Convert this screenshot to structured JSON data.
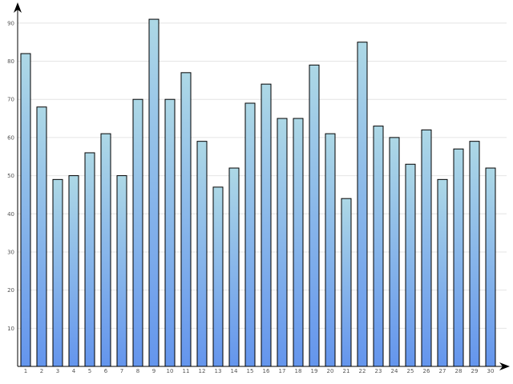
{
  "chart_data": {
    "type": "bar",
    "categories": [
      "1",
      "2",
      "3",
      "4",
      "5",
      "6",
      "7",
      "8",
      "9",
      "10",
      "11",
      "12",
      "13",
      "14",
      "15",
      "16",
      "17",
      "18",
      "19",
      "20",
      "21",
      "22",
      "23",
      "24",
      "25",
      "26",
      "27",
      "28",
      "29",
      "30"
    ],
    "values": [
      82,
      68,
      49,
      50,
      56,
      61,
      50,
      70,
      91,
      70,
      77,
      59,
      47,
      52,
      69,
      74,
      65,
      65,
      79,
      61,
      44,
      85,
      63,
      60,
      53,
      62,
      49,
      57,
      59,
      52
    ],
    "yticks": [
      10,
      20,
      30,
      40,
      50,
      60,
      70,
      80,
      90
    ],
    "ylim": [
      0,
      95
    ],
    "grid": true,
    "title": "",
    "xlabel": "",
    "ylabel": "",
    "colors": {
      "bar_top": "#add8e6",
      "bar_bottom": "#6495ed",
      "grid": "#e4e4e4",
      "axis": "#000000"
    }
  }
}
